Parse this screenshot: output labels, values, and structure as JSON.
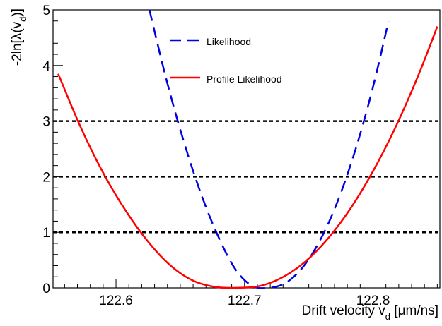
{
  "chart_data": {
    "type": "line",
    "xlabel": {
      "prefix": "Drift velocity v",
      "subscript": "d",
      "suffix": " [μm/ns]"
    },
    "ylabel": {
      "prefix": "-2ln[λ(v",
      "subscript": "d",
      "suffix": ")]"
    },
    "xlim": [
      122.551,
      122.852
    ],
    "ylim": [
      0,
      5
    ],
    "x_tick_labels": [
      "122.6",
      "122.7",
      "122.8"
    ],
    "x_ticks": [
      122.6,
      122.7,
      122.8
    ],
    "y_tick_labels": [
      "0",
      "1",
      "2",
      "3",
      "4",
      "5"
    ],
    "y_ticks": [
      0,
      1,
      2,
      3,
      4,
      5
    ],
    "x_minor_step": 0.01,
    "y_minor_step": 0.2,
    "legend_position": "top-center",
    "reference_lines": [
      {
        "y": 1,
        "style": "dotted",
        "color": "#000000"
      },
      {
        "y": 2,
        "style": "dotted",
        "color": "#000000"
      },
      {
        "y": 3,
        "style": "dotted",
        "color": "#000000"
      }
    ],
    "series": [
      {
        "name": "Likelihood",
        "color": "#0000e0",
        "style": "dashed",
        "x": [
          122.626,
          122.6393,
          122.6526,
          122.6659,
          122.6792,
          122.6925,
          122.7058,
          122.7191,
          122.7324,
          122.7457,
          122.759,
          122.7723,
          122.7856,
          122.7989,
          122.812
        ],
        "y": [
          5.0,
          3.737,
          2.643,
          1.707,
          0.943,
          0.349,
          0.038,
          0.003,
          0.095,
          0.383,
          0.865,
          1.549,
          2.433,
          3.516,
          4.79
        ]
      },
      {
        "name": "Profile Likelihood",
        "color": "#ff0000",
        "style": "solid",
        "x": [
          122.555,
          122.5725,
          122.59,
          122.6075,
          122.625,
          122.6425,
          122.66,
          122.6775,
          122.695,
          122.7125,
          122.73,
          122.7475,
          122.765,
          122.7825,
          122.8,
          122.8175,
          122.835,
          122.85
        ],
        "y": [
          3.85,
          2.89,
          2.07,
          1.39,
          0.83,
          0.4,
          0.13,
          0.016,
          0.002,
          0.037,
          0.196,
          0.477,
          0.89,
          1.43,
          2.1,
          2.89,
          3.81,
          4.7
        ]
      }
    ]
  }
}
